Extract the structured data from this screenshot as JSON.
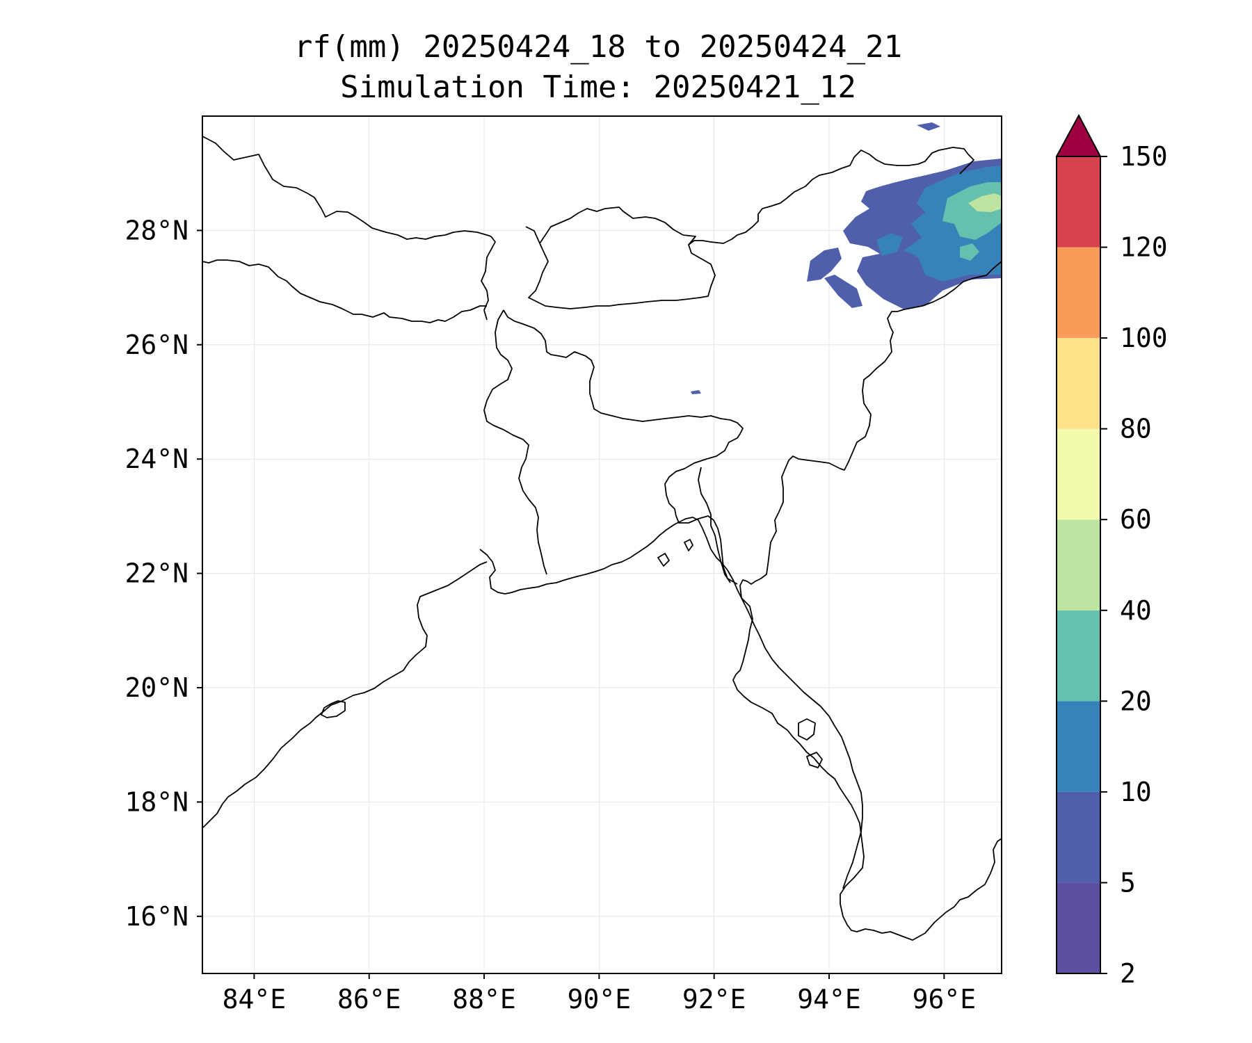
{
  "title": {
    "line1": "rf(mm) 20250424_18 to 20250424_21",
    "line2": "Simulation Time: 20250421_12"
  },
  "map": {
    "lon_range": [
      83.1,
      97.0
    ],
    "lat_range": [
      15.0,
      30.0
    ],
    "gridlines": true,
    "lon_ticks": [
      {
        "value": 84,
        "label": "84°E"
      },
      {
        "value": 86,
        "label": "86°E"
      },
      {
        "value": 88,
        "label": "88°E"
      },
      {
        "value": 90,
        "label": "90°E"
      },
      {
        "value": 92,
        "label": "92°E"
      },
      {
        "value": 94,
        "label": "94°E"
      },
      {
        "value": 96,
        "label": "96°E"
      }
    ],
    "lat_ticks": [
      {
        "value": 16,
        "label": "16°N"
      },
      {
        "value": 18,
        "label": "18°N"
      },
      {
        "value": 20,
        "label": "20°N"
      },
      {
        "value": 22,
        "label": "22°N"
      },
      {
        "value": 24,
        "label": "24°N"
      },
      {
        "value": 26,
        "label": "26°N"
      },
      {
        "value": 28,
        "label": "28°N"
      }
    ]
  },
  "colorbar": {
    "extend": "max",
    "extend_color": "#9e0142",
    "levels": [
      {
        "label": "2",
        "color": "#5e4fa2"
      },
      {
        "label": "5",
        "color": "#4f5fac"
      },
      {
        "label": "10",
        "color": "#3882ba"
      },
      {
        "label": "20",
        "color": "#65c0ae"
      },
      {
        "label": "40",
        "color": "#bde4a1"
      },
      {
        "label": "60",
        "color": "#f3faac"
      },
      {
        "label": "80",
        "color": "#fde28a"
      },
      {
        "label": "100",
        "color": "#f99c59"
      },
      {
        "label": "120",
        "color": "#d7424c"
      },
      {
        "label": "150",
        "color": null
      }
    ]
  }
}
